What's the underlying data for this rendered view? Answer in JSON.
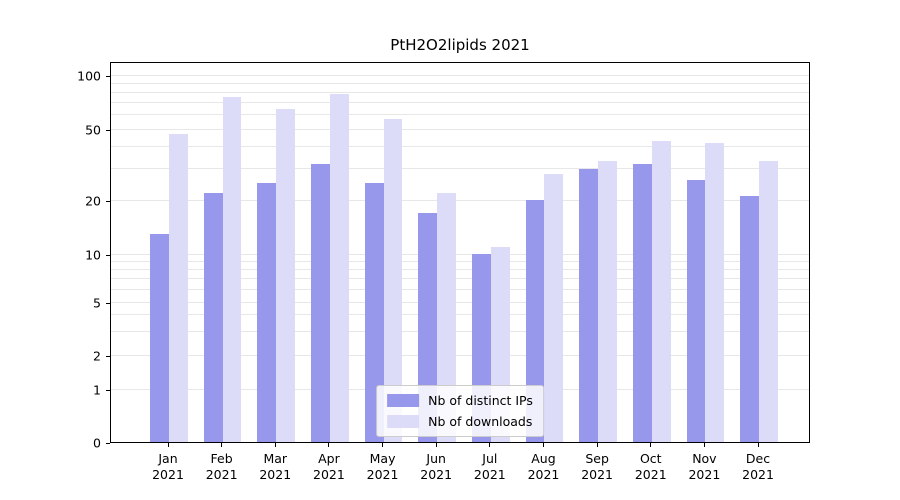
{
  "title": "PtH2O2lipids 2021",
  "chart_data": {
    "type": "bar",
    "title": "PtH2O2lipids 2021",
    "categories": [
      "Jan 2021",
      "Feb 2021",
      "Mar 2021",
      "Apr 2021",
      "May 2021",
      "Jun 2021",
      "Jul 2021",
      "Aug 2021",
      "Sep 2021",
      "Oct 2021",
      "Nov 2021",
      "Dec 2021"
    ],
    "series": [
      {
        "name": "Nb of distinct IPs",
        "color": "#9797ec",
        "values": [
          13,
          22,
          25,
          32,
          25,
          17,
          10,
          20,
          30,
          32,
          26,
          21
        ]
      },
      {
        "name": "Nb of downloads",
        "color": "#dcdcf8",
        "values": [
          47,
          75,
          65,
          78,
          57,
          22,
          11,
          28,
          33,
          43,
          42,
          33
        ]
      }
    ],
    "xlabel": "",
    "ylabel": "",
    "yscale": "symlog",
    "yticks": [
      0,
      1,
      2,
      5,
      10,
      20,
      50,
      100
    ],
    "ylim": [
      0,
      120
    ],
    "grid": "horizontal-minor",
    "legend_position": "lower-center-inside",
    "colors": {
      "grid": "#e7e7e7",
      "axis": "#000000",
      "background": "#ffffff"
    }
  }
}
